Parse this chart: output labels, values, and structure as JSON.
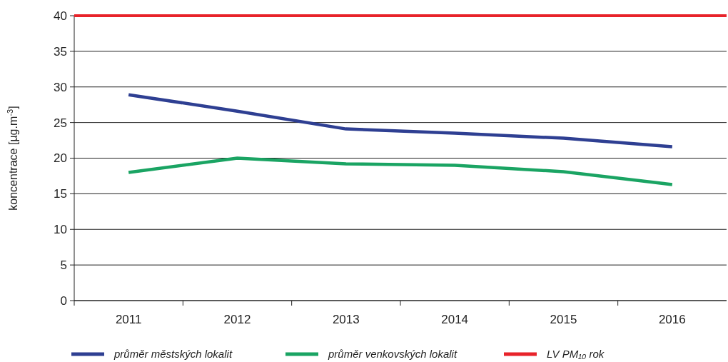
{
  "chart_data": {
    "type": "line",
    "ylabel": "koncentrace [µg.m$^{-3}$]",
    "categories": [
      "2011",
      "2012",
      "2013",
      "2014",
      "2015",
      "2016"
    ],
    "series": [
      {
        "name": "průměr městských lokalit",
        "color": "#2e3f92",
        "values": [
          28.9,
          26.6,
          24.1,
          23.5,
          22.8,
          21.6
        ]
      },
      {
        "name": "průměr venkovských lokalit",
        "color": "#1aa463",
        "values": [
          18.0,
          20.0,
          19.2,
          19.0,
          18.1,
          16.3
        ]
      }
    ],
    "ref_lines": [
      {
        "axis": "y",
        "value": 40,
        "label": "LV PM₁₀ rok",
        "color": "#e8232a"
      }
    ],
    "ylim": [
      0,
      40
    ],
    "yticks": [
      0,
      5,
      10,
      15,
      20,
      25,
      30,
      35,
      40
    ],
    "grid": "y",
    "legend": "bottom",
    "marker": "none",
    "line_style": "solid"
  }
}
